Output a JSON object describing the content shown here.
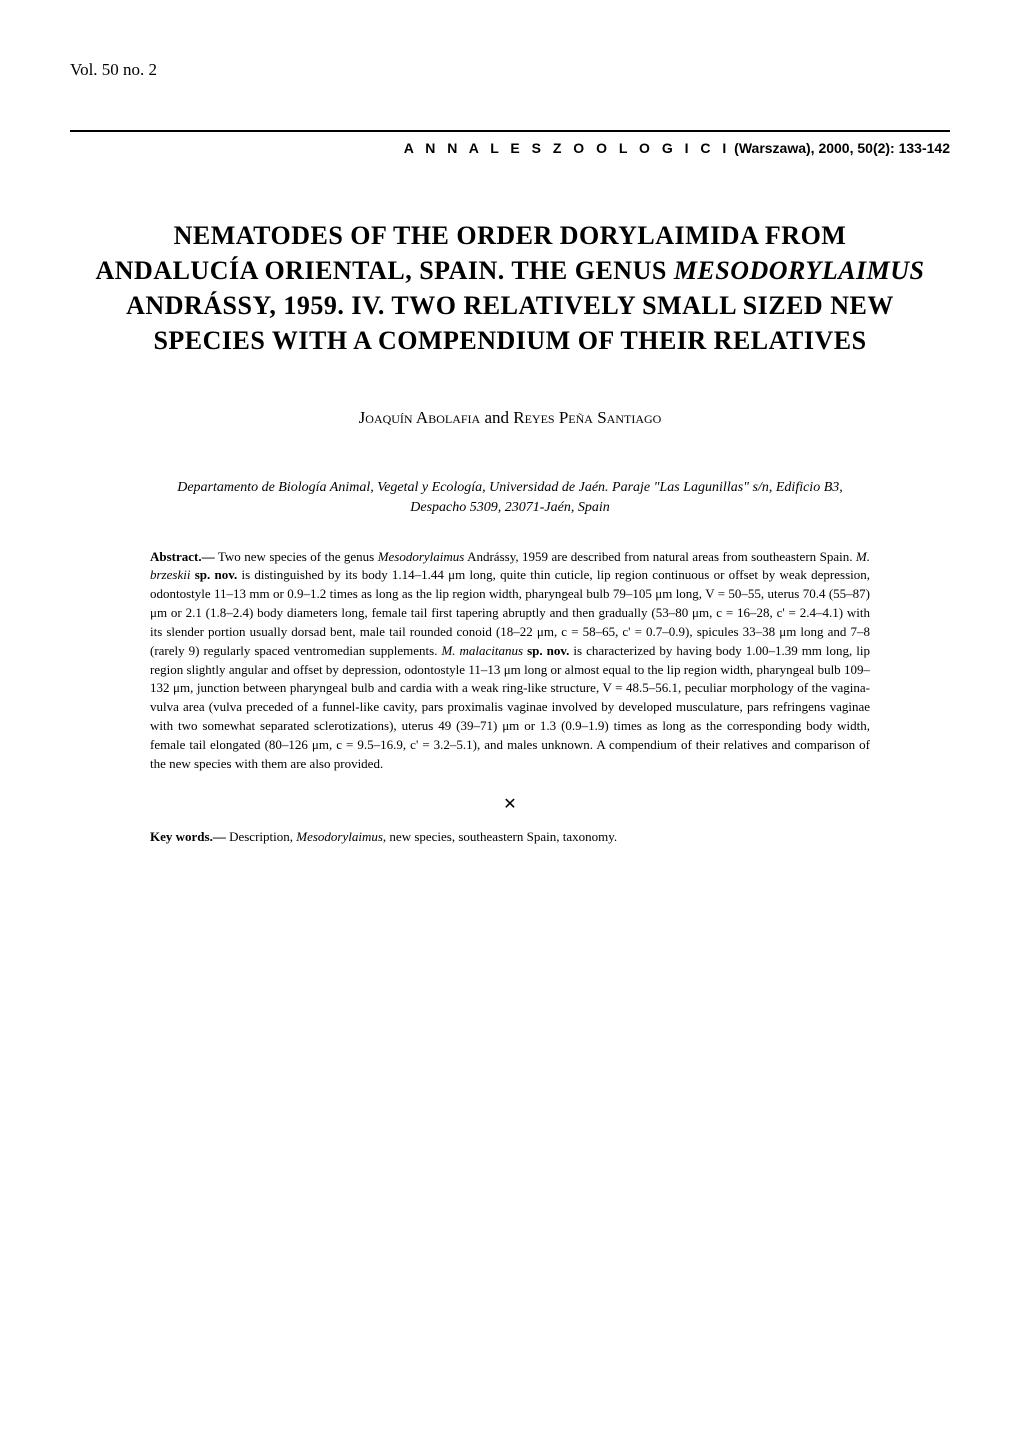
{
  "header": {
    "vol_issue": "Vol. 50 no. 2",
    "journal_name": "A N N A L E S   Z O O L O G I C I",
    "journal_details": " (Warszawa), 2000, 50(2): 133-142"
  },
  "title": {
    "line1": "NEMATODES OF THE ORDER DORYLAIMIDA FROM",
    "line2_pre": "ANDALUCÍA ORIENTAL, SPAIN. THE GENUS ",
    "line2_italic": "MESODORYLAIMUS",
    "line3": "ANDRÁSSY, 1959. IV. TWO RELATIVELY SMALL SIZED NEW",
    "line4": "SPECIES WITH A COMPENDIUM OF THEIR RELATIVES"
  },
  "authors": {
    "author1_first": "Joaquín ",
    "author1_last": "Abolafia",
    "connector": " and ",
    "author2_first": "Reyes ",
    "author2_last": "Peña Santiago"
  },
  "affiliation": "Departamento de Biología Animal, Vegetal y Ecología, Universidad de Jaén. Paraje \"Las Lagunillas\" s/n, Edificio B3, Despacho 5309, 23071-Jaén, Spain",
  "abstract": {
    "label": "Abstract.—",
    "text_1": " Two new species of the genus ",
    "italic_1": "Mesodorylaimus",
    "text_2": " Andrássy, 1959 are described from natural areas from southeastern Spain. ",
    "italic_2": "M. brzeskii",
    "text_3": " ",
    "bold_1": "sp. nov.",
    "text_4": " is distinguished by its body 1.14–1.44 μm long, quite thin cuticle, lip region continuous or offset by weak depression, odontostyle 11–13 mm or 0.9–1.2 times as long as the lip region width, pharyngeal bulb 79–105 μm long, V = 50–55, uterus 70.4 (55–87) μm or 2.1 (1.8–2.4) body diameters long, female tail first tapering abruptly and then gradually (53–80 μm, c = 16–28, c' = 2.4–4.1) with its slender portion usually dorsad bent, male tail rounded conoid (18–22 μm, c = 58–65, c' = 0.7–0.9), spicules 33–38 μm long and 7–8 (rarely 9) regularly spaced ventromedian supplements. ",
    "italic_3": "M. malacitanus",
    "text_5": " ",
    "bold_2": "sp. nov.",
    "text_6": " is characterized by having body 1.00–1.39 mm long, lip region slightly angular and offset by depression, odontostyle 11–13 μm long or almost equal to the lip region width, pharyngeal bulb 109–132 μm, junction between pharyngeal bulb and cardia with a weak ring-like structure, V = 48.5–56.1, peculiar morphology of the vagina-vulva area (vulva preceded of a funnel-like cavity, pars proximalis vaginae involved by developed musculature, pars refringens vaginae with two somewhat separated sclerotizations), uterus 49 (39–71) μm or 1.3 (0.9–1.9) times as long as the corresponding body width, female tail elongated (80–126 μm, c = 9.5–16.9, c' = 3.2–5.1), and males unknown. A compendium of their relatives and comparison of the new species with them are also provided."
  },
  "divider_symbol": "✕",
  "keywords": {
    "label": "Key words.—",
    "text_1": " Description, ",
    "italic_1": "Mesodorylaimus",
    "text_2": ", new species, southeastern Spain, taxonomy."
  },
  "colors": {
    "text": "#000000",
    "background": "#ffffff",
    "rule": "#000000"
  },
  "typography": {
    "body_font": "Georgia, Times New Roman, serif",
    "sans_font": "Arial, Helvetica, sans-serif",
    "title_size": 26,
    "abstract_size": 13,
    "authors_size": 17,
    "affiliation_size": 14,
    "journal_size": 14,
    "vol_size": 17
  }
}
